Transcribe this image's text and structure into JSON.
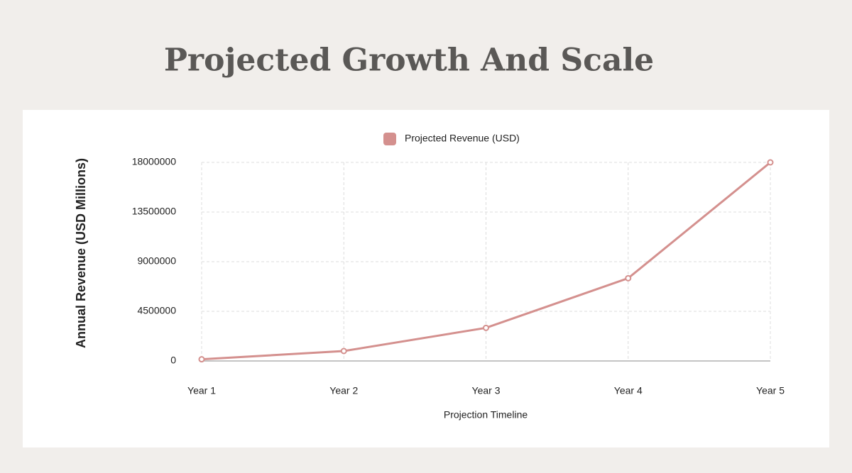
{
  "chart_data": {
    "type": "line",
    "title": "Projected Growth And Scale",
    "x_label": "Projection Timeline",
    "y_label": "Annual Revenue (USD Millions)",
    "categories": [
      "Year 1",
      "Year 2",
      "Year 3",
      "Year 4",
      "Year 5"
    ],
    "series": [
      {
        "name": "Projected Revenue (USD)",
        "color": "#d4908e",
        "values": [
          150000,
          900000,
          3000000,
          7500000,
          18000000
        ]
      }
    ],
    "ylim": [
      0,
      18000000
    ],
    "yticks": [
      0,
      4500000,
      9000000,
      13500000,
      18000000
    ],
    "grid": true,
    "legend": "top"
  }
}
